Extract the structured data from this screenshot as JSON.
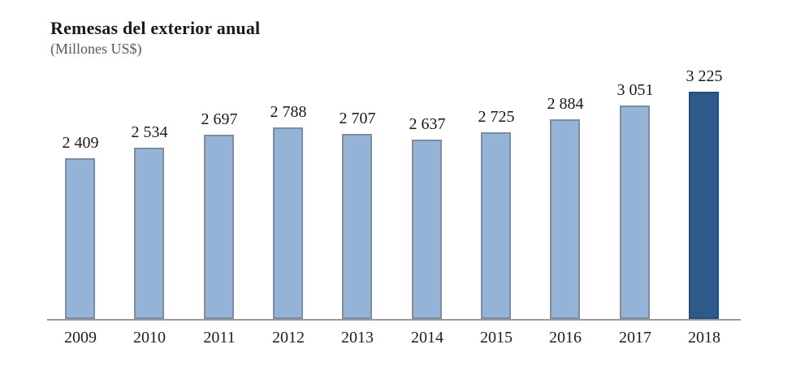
{
  "title": "Remesas del exterior anual",
  "subtitle": "(Millones US$)",
  "colors": {
    "bar_fill": "#95B3D7",
    "bar_border": "#7E8CA0",
    "highlight_fill": "#2E5A8B",
    "highlight_border": "#274D77",
    "axis_line": "#9A9A9A",
    "title_text": "#1A1A1A",
    "subtitle_text": "#595959",
    "label_text": "#1A1A1A"
  },
  "chart_data": {
    "type": "bar",
    "title": "Remesas del exterior anual",
    "subtitle": "(Millones US$)",
    "categories": [
      "2009",
      "2010",
      "2011",
      "2012",
      "2013",
      "2014",
      "2015",
      "2016",
      "2017",
      "2018"
    ],
    "values": [
      2409,
      2534,
      2697,
      2788,
      2707,
      2637,
      2725,
      2884,
      3051,
      3225
    ],
    "value_labels": [
      "2 409",
      "2 534",
      "2 697",
      "2 788",
      "2 707",
      "2 637",
      "2 725",
      "2 884",
      "3 051",
      "3 225"
    ],
    "highlighted_category": "2018",
    "xlabel": "",
    "ylabel": "",
    "ylim": [
      430,
      3300
    ],
    "grid": false,
    "legend": false,
    "data_labels": "above-bars",
    "y_axis_visible": false
  }
}
